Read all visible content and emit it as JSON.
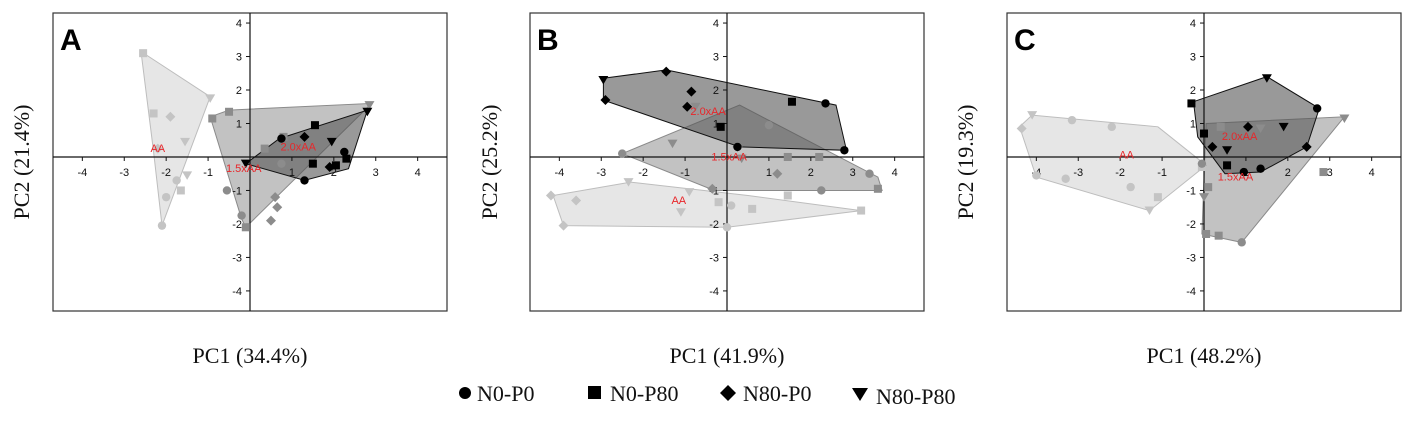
{
  "legend": [
    {
      "marker": "circle",
      "label": "N0-P0"
    },
    {
      "marker": "square",
      "label": "N0-P80"
    },
    {
      "marker": "diamond",
      "label": "N80-P0"
    },
    {
      "marker": "triangle",
      "label": "N80-P80"
    }
  ],
  "colors": {
    "AA": "#c8c8c8",
    "1.5xAA": "#909090",
    "2.0xAA": "#555555",
    "annotation": "#e8262a",
    "frame": "#333333"
  },
  "chart_data": [
    {
      "type": "scatter",
      "panel": "A",
      "xlabel": "PC1 (34.4%)",
      "ylabel": "PC2 (21.4%)",
      "xlim": [
        -4.7,
        4.7
      ],
      "ylim": [
        -4.6,
        4.3
      ],
      "xticks": [
        "-4",
        "-3",
        "-2",
        "-1",
        "1",
        "2",
        "3",
        "4"
      ],
      "yticks": [
        "4",
        "3",
        "2",
        "1",
        "-1",
        "-2",
        "-3",
        "-4"
      ],
      "annotations": [
        {
          "text": "AA",
          "x": -2.2,
          "y": 0.15
        },
        {
          "text": "1.5xAA",
          "x": -0.15,
          "y": -0.45
        },
        {
          "text": "2.0xAA",
          "x": 1.15,
          "y": 0.2
        }
      ],
      "groups": [
        {
          "name": "AA",
          "hull": [
            [
              -2.6,
              3.15
            ],
            [
              -0.95,
              1.8
            ],
            [
              -2.1,
              -2.05
            ],
            [
              -2.3,
              0.15
            ]
          ],
          "points": [
            {
              "m": "square",
              "x": -2.55,
              "y": 3.1
            },
            {
              "m": "triangle",
              "x": -0.95,
              "y": 1.75
            },
            {
              "m": "square",
              "x": -2.3,
              "y": 1.3
            },
            {
              "m": "diamond",
              "x": -1.9,
              "y": 1.2
            },
            {
              "m": "triangle",
              "x": -1.55,
              "y": 0.45
            },
            {
              "m": "diamond",
              "x": -2.2,
              "y": 0.25
            },
            {
              "m": "triangle",
              "x": -1.5,
              "y": -0.55
            },
            {
              "m": "circle",
              "x": -1.75,
              "y": -0.7
            },
            {
              "m": "square",
              "x": -1.65,
              "y": -1.0
            },
            {
              "m": "circle",
              "x": -2.0,
              "y": -1.2
            },
            {
              "m": "circle",
              "x": -2.1,
              "y": -2.05
            }
          ]
        },
        {
          "name": "1.5xAA",
          "hull": [
            [
              -0.95,
              1.2
            ],
            [
              -0.5,
              1.4
            ],
            [
              2.9,
              1.6
            ],
            [
              -0.1,
              -2.1
            ],
            [
              -0.2,
              -1.85
            ]
          ],
          "points": [
            {
              "m": "square",
              "x": -0.9,
              "y": 1.15
            },
            {
              "m": "square",
              "x": -0.5,
              "y": 1.35
            },
            {
              "m": "triangle",
              "x": 2.85,
              "y": 1.55
            },
            {
              "m": "square",
              "x": 0.35,
              "y": 0.25
            },
            {
              "m": "square",
              "x": 0.8,
              "y": 0.6
            },
            {
              "m": "circle",
              "x": 0.75,
              "y": -0.2
            },
            {
              "m": "circle",
              "x": -0.55,
              "y": -1.0
            },
            {
              "m": "diamond",
              "x": 0.6,
              "y": -1.2
            },
            {
              "m": "diamond",
              "x": 0.65,
              "y": -1.5
            },
            {
              "m": "circle",
              "x": -0.2,
              "y": -1.75
            },
            {
              "m": "diamond",
              "x": 0.5,
              "y": -1.9
            },
            {
              "m": "square",
              "x": -0.1,
              "y": -2.1
            }
          ]
        },
        {
          "name": "2.0xAA",
          "hull": [
            [
              0.7,
              0.55
            ],
            [
              2.8,
              1.4
            ],
            [
              2.35,
              -0.35
            ],
            [
              1.3,
              -0.7
            ],
            [
              -0.1,
              -0.2
            ]
          ],
          "points": [
            {
              "m": "circle",
              "x": 0.75,
              "y": 0.55
            },
            {
              "m": "diamond",
              "x": 1.3,
              "y": 0.6
            },
            {
              "m": "square",
              "x": 1.55,
              "y": 0.95
            },
            {
              "m": "triangle",
              "x": 2.8,
              "y": 1.35
            },
            {
              "m": "triangle",
              "x": 1.95,
              "y": 0.45
            },
            {
              "m": "circle",
              "x": 2.25,
              "y": 0.15
            },
            {
              "m": "square",
              "x": 2.3,
              "y": -0.05
            },
            {
              "m": "diamond",
              "x": 1.9,
              "y": -0.3
            },
            {
              "m": "square",
              "x": 2.05,
              "y": -0.25
            },
            {
              "m": "square",
              "x": 1.5,
              "y": -0.2
            },
            {
              "m": "triangle",
              "x": -0.1,
              "y": -0.2
            },
            {
              "m": "circle",
              "x": 1.3,
              "y": -0.7
            }
          ]
        }
      ]
    },
    {
      "type": "scatter",
      "panel": "B",
      "xlabel": "PC1 (41.9%)",
      "ylabel": "PC2 (25.2%)",
      "xlim": [
        -4.7,
        4.7
      ],
      "ylim": [
        -4.6,
        4.3
      ],
      "xticks": [
        "-4",
        "-3",
        "-2",
        "-1",
        "1",
        "2",
        "3",
        "4"
      ],
      "yticks": [
        "4",
        "3",
        "2",
        "1",
        "-1",
        "-2",
        "-3",
        "-4"
      ],
      "annotations": [
        {
          "text": "2.0xAA",
          "x": -0.45,
          "y": 1.25
        },
        {
          "text": "1.5xAA",
          "x": 0.05,
          "y": -0.1
        },
        {
          "text": "AA",
          "x": -1.15,
          "y": -1.4
        }
      ],
      "groups": [
        {
          "name": "AA",
          "hull": [
            [
              -4.15,
              -1.15
            ],
            [
              -3.9,
              -2.05
            ],
            [
              0,
              -2.1
            ],
            [
              3.2,
              -1.6
            ],
            [
              0.5,
              -1.15
            ],
            [
              -2.3,
              -0.75
            ]
          ],
          "points": [
            {
              "m": "diamond",
              "x": -4.2,
              "y": -1.15
            },
            {
              "m": "diamond",
              "x": -3.6,
              "y": -1.3
            },
            {
              "m": "triangle",
              "x": -2.35,
              "y": -0.75
            },
            {
              "m": "triangle",
              "x": -0.9,
              "y": -1.05
            },
            {
              "m": "square",
              "x": -0.2,
              "y": -1.35
            },
            {
              "m": "circle",
              "x": 0.1,
              "y": -1.45
            },
            {
              "m": "square",
              "x": 0.6,
              "y": -1.55
            },
            {
              "m": "square",
              "x": 1.45,
              "y": -1.15
            },
            {
              "m": "square",
              "x": 3.2,
              "y": -1.6
            },
            {
              "m": "diamond",
              "x": -3.9,
              "y": -2.05
            },
            {
              "m": "triangle",
              "x": -1.1,
              "y": -1.65
            },
            {
              "m": "circle",
              "x": 0,
              "y": -2.1
            }
          ]
        },
        {
          "name": "1.5xAA",
          "hull": [
            [
              -2.5,
              0.1
            ],
            [
              0.3,
              1.55
            ],
            [
              3.6,
              -0.6
            ],
            [
              3.7,
              -1.0
            ],
            [
              -0.3,
              -1.0
            ]
          ],
          "points": [
            {
              "m": "circle",
              "x": -2.5,
              "y": 0.1
            },
            {
              "m": "triangle",
              "x": -1.3,
              "y": 0.4
            },
            {
              "m": "circle",
              "x": 1.0,
              "y": 0.95
            },
            {
              "m": "triangle",
              "x": -0.75,
              "y": 1.5
            },
            {
              "m": "square",
              "x": 2.2,
              "y": 0
            },
            {
              "m": "diamond",
              "x": 0.25,
              "y": 0.3
            },
            {
              "m": "square",
              "x": 1.45,
              "y": 0.0
            },
            {
              "m": "triangle",
              "x": 0.35,
              "y": -0.05
            },
            {
              "m": "diamond",
              "x": 1.2,
              "y": -0.5
            },
            {
              "m": "circle",
              "x": 3.4,
              "y": -0.5
            },
            {
              "m": "square",
              "x": 3.6,
              "y": -0.95
            },
            {
              "m": "circle",
              "x": 2.25,
              "y": -1.0
            },
            {
              "m": "diamond",
              "x": -0.35,
              "y": -0.95
            }
          ]
        },
        {
          "name": "2.0xAA",
          "hull": [
            [
              -2.95,
              2.35
            ],
            [
              -1.45,
              2.6
            ],
            [
              2.6,
              1.55
            ],
            [
              2.85,
              0.2
            ],
            [
              0.3,
              0.3
            ],
            [
              -2.95,
              1.7
            ]
          ],
          "points": [
            {
              "m": "triangle",
              "x": -2.95,
              "y": 2.3
            },
            {
              "m": "diamond",
              "x": -1.45,
              "y": 2.55
            },
            {
              "m": "diamond",
              "x": -0.85,
              "y": 1.95
            },
            {
              "m": "diamond",
              "x": -2.9,
              "y": 1.7
            },
            {
              "m": "diamond",
              "x": -0.95,
              "y": 1.5
            },
            {
              "m": "square",
              "x": 1.55,
              "y": 1.65
            },
            {
              "m": "circle",
              "x": 2.35,
              "y": 1.6
            },
            {
              "m": "square",
              "x": -0.15,
              "y": 0.9
            },
            {
              "m": "circle",
              "x": 0.25,
              "y": 0.3
            },
            {
              "m": "circle",
              "x": 2.8,
              "y": 0.2
            }
          ]
        }
      ]
    },
    {
      "type": "scatter",
      "panel": "C",
      "xlabel": "PC1 (48.2%)",
      "ylabel": "PC2 (19.3%)",
      "xlim": [
        -4.7,
        4.7
      ],
      "ylim": [
        -4.6,
        4.3
      ],
      "xticks": [
        "-4",
        "-3",
        "-2",
        "-1",
        "1",
        "2",
        "3",
        "4"
      ],
      "yticks": [
        "4",
        "3",
        "2",
        "1",
        "-1",
        "-2",
        "-3",
        "-4"
      ],
      "annotations": [
        {
          "text": "AA",
          "x": -1.85,
          "y": -0.05
        },
        {
          "text": "2.0xAA",
          "x": 0.85,
          "y": 0.5
        },
        {
          "text": "1.5xAA",
          "x": 0.75,
          "y": -0.7
        }
      ],
      "groups": [
        {
          "name": "AA",
          "hull": [
            [
              -4.4,
              0.9
            ],
            [
              -4.1,
              1.25
            ],
            [
              -1.1,
              0.9
            ],
            [
              0.05,
              -0.25
            ],
            [
              -1.3,
              -1.6
            ],
            [
              -4.0,
              -0.6
            ]
          ],
          "points": [
            {
              "m": "diamond",
              "x": -4.35,
              "y": 0.85
            },
            {
              "m": "triangle",
              "x": -4.1,
              "y": 1.25
            },
            {
              "m": "circle",
              "x": -3.15,
              "y": 1.1
            },
            {
              "m": "circle",
              "x": -2.2,
              "y": 0.9
            },
            {
              "m": "circle",
              "x": -4.0,
              "y": -0.55
            },
            {
              "m": "circle",
              "x": -3.3,
              "y": -0.65
            },
            {
              "m": "circle",
              "x": -1.75,
              "y": -0.9
            },
            {
              "m": "square",
              "x": -1.1,
              "y": -1.2
            },
            {
              "m": "triangle",
              "x": -1.3,
              "y": -1.6
            },
            {
              "m": "square",
              "x": -0.05,
              "y": -0.3
            }
          ]
        },
        {
          "name": "1.5xAA",
          "hull": [
            [
              0.05,
              1.0
            ],
            [
              3.35,
              1.2
            ],
            [
              0.9,
              -2.55
            ],
            [
              -0.05,
              -2.3
            ]
          ],
          "points": [
            {
              "m": "triangle",
              "x": 3.35,
              "y": 1.15
            },
            {
              "m": "square",
              "x": 0.4,
              "y": 0.9
            },
            {
              "m": "triangle",
              "x": 1.35,
              "y": 0.85
            },
            {
              "m": "circle",
              "x": -0.05,
              "y": -0.2
            },
            {
              "m": "square",
              "x": 2.85,
              "y": -0.45
            },
            {
              "m": "square",
              "x": 0.1,
              "y": -0.9
            },
            {
              "m": "triangle",
              "x": 0,
              "y": -1.2
            },
            {
              "m": "square",
              "x": 0.05,
              "y": -2.3
            },
            {
              "m": "square",
              "x": 0.35,
              "y": -2.35
            },
            {
              "m": "circle",
              "x": 0.9,
              "y": -2.55
            }
          ]
        },
        {
          "name": "2.0xAA",
          "hull": [
            [
              -0.25,
              1.65
            ],
            [
              1.5,
              2.4
            ],
            [
              2.75,
              1.45
            ],
            [
              2.45,
              0.3
            ],
            [
              1.35,
              -0.45
            ],
            [
              0.5,
              -0.5
            ],
            [
              -0.15,
              0.6
            ]
          ],
          "points": [
            {
              "m": "square",
              "x": -0.3,
              "y": 1.6
            },
            {
              "m": "triangle",
              "x": 1.5,
              "y": 2.35
            },
            {
              "m": "circle",
              "x": 2.7,
              "y": 1.45
            },
            {
              "m": "triangle",
              "x": 1.9,
              "y": 0.9
            },
            {
              "m": "diamond",
              "x": 1.05,
              "y": 0.9
            },
            {
              "m": "square",
              "x": 0.0,
              "y": 0.7
            },
            {
              "m": "diamond",
              "x": 2.45,
              "y": 0.3
            },
            {
              "m": "triangle",
              "x": 0.55,
              "y": 0.2
            },
            {
              "m": "diamond",
              "x": 0.2,
              "y": 0.3
            },
            {
              "m": "square",
              "x": 0.55,
              "y": -0.25
            },
            {
              "m": "circle",
              "x": 0.95,
              "y": -0.45
            },
            {
              "m": "circle",
              "x": 1.35,
              "y": -0.35
            }
          ]
        }
      ]
    }
  ]
}
